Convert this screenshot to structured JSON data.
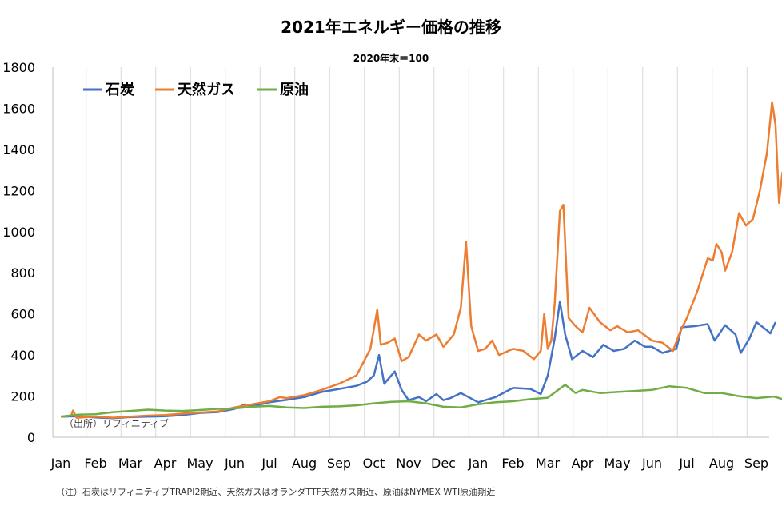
{
  "chart_data": {
    "type": "line",
    "title": "2021年エネルギー価格の推移",
    "subtitle": "2020年末＝100",
    "xlabel": "",
    "ylabel": "",
    "ylim": [
      0,
      1800
    ],
    "yticks": [
      0,
      200,
      400,
      600,
      800,
      1000,
      1200,
      1400,
      1600,
      1800
    ],
    "grid": "vertical lines at month boundaries",
    "legend_position": "top-left",
    "x_tick_labels": [
      "Jan",
      "Feb",
      "Mar",
      "Apr",
      "May",
      "Jun",
      "Jul",
      "Aug",
      "Sep",
      "Oct",
      "Nov",
      "Dec",
      "Jan",
      "Feb",
      "Mar",
      "Apr",
      "May",
      "Jun",
      "Jul",
      "Aug",
      "Sep"
    ],
    "x_domain_months": [
      0,
      20.6
    ],
    "source_text": "（出所）リフィニティブ",
    "note_text": "（注）石炭はリフィニティブTRAPI2期近、天然ガスはオランダTTF天然ガス期近、原油はNYMEX WTI原油期近",
    "series": [
      {
        "name": "石炭",
        "color": "#4472C4",
        "points": [
          [
            0,
            100
          ],
          [
            0.5,
            102
          ],
          [
            1.0,
            96
          ],
          [
            1.5,
            92
          ],
          [
            2.0,
            98
          ],
          [
            2.5,
            100
          ],
          [
            3.0,
            102
          ],
          [
            3.5,
            108
          ],
          [
            4.0,
            118
          ],
          [
            4.5,
            122
          ],
          [
            5.0,
            138
          ],
          [
            5.3,
            160
          ],
          [
            5.5,
            150
          ],
          [
            6.0,
            170
          ],
          [
            6.5,
            182
          ],
          [
            7.0,
            195
          ],
          [
            7.5,
            220
          ],
          [
            8.0,
            235
          ],
          [
            8.5,
            250
          ],
          [
            8.8,
            270
          ],
          [
            9.0,
            300
          ],
          [
            9.15,
            400
          ],
          [
            9.3,
            260
          ],
          [
            9.6,
            320
          ],
          [
            9.8,
            230
          ],
          [
            10.0,
            180
          ],
          [
            10.3,
            195
          ],
          [
            10.5,
            175
          ],
          [
            10.8,
            210
          ],
          [
            11.0,
            180
          ],
          [
            11.2,
            190
          ],
          [
            11.5,
            215
          ],
          [
            12.0,
            170
          ],
          [
            12.5,
            195
          ],
          [
            13.0,
            240
          ],
          [
            13.5,
            235
          ],
          [
            13.8,
            210
          ],
          [
            14.0,
            300
          ],
          [
            14.2,
            480
          ],
          [
            14.35,
            660
          ],
          [
            14.5,
            500
          ],
          [
            14.7,
            380
          ],
          [
            15.0,
            420
          ],
          [
            15.3,
            390
          ],
          [
            15.6,
            450
          ],
          [
            15.9,
            420
          ],
          [
            16.2,
            430
          ],
          [
            16.5,
            470
          ],
          [
            16.8,
            440
          ],
          [
            17.0,
            440
          ],
          [
            17.3,
            410
          ],
          [
            17.7,
            430
          ],
          [
            17.85,
            535
          ],
          [
            18.2,
            540
          ],
          [
            18.6,
            550
          ],
          [
            18.8,
            470
          ],
          [
            19.1,
            545
          ],
          [
            19.4,
            500
          ],
          [
            19.55,
            410
          ],
          [
            19.8,
            480
          ],
          [
            20.0,
            560
          ],
          [
            20.3,
            520
          ],
          [
            20.4,
            505
          ],
          [
            20.55,
            560
          ]
        ]
      },
      {
        "name": "天然ガス",
        "color": "#ED7D31",
        "points": [
          [
            0,
            100
          ],
          [
            0.3,
            105
          ],
          [
            0.35,
            130
          ],
          [
            0.45,
            95
          ],
          [
            1.0,
            100
          ],
          [
            1.5,
            95
          ],
          [
            2.0,
            100
          ],
          [
            2.5,
            105
          ],
          [
            3.0,
            108
          ],
          [
            3.5,
            115
          ],
          [
            4.0,
            120
          ],
          [
            4.5,
            125
          ],
          [
            5.0,
            145
          ],
          [
            5.5,
            160
          ],
          [
            6.0,
            175
          ],
          [
            6.3,
            195
          ],
          [
            6.5,
            190
          ],
          [
            7.0,
            205
          ],
          [
            7.5,
            230
          ],
          [
            8.0,
            260
          ],
          [
            8.5,
            300
          ],
          [
            8.9,
            430
          ],
          [
            9.1,
            620
          ],
          [
            9.2,
            450
          ],
          [
            9.4,
            460
          ],
          [
            9.6,
            480
          ],
          [
            9.8,
            370
          ],
          [
            10.0,
            390
          ],
          [
            10.3,
            500
          ],
          [
            10.5,
            470
          ],
          [
            10.8,
            500
          ],
          [
            11.0,
            440
          ],
          [
            11.3,
            500
          ],
          [
            11.5,
            630
          ],
          [
            11.65,
            950
          ],
          [
            11.8,
            540
          ],
          [
            12.0,
            420
          ],
          [
            12.2,
            430
          ],
          [
            12.4,
            470
          ],
          [
            12.6,
            400
          ],
          [
            13.0,
            430
          ],
          [
            13.3,
            420
          ],
          [
            13.6,
            380
          ],
          [
            13.8,
            420
          ],
          [
            13.9,
            600
          ],
          [
            14.0,
            430
          ],
          [
            14.1,
            470
          ],
          [
            14.2,
            650
          ],
          [
            14.35,
            1100
          ],
          [
            14.45,
            1130
          ],
          [
            14.6,
            580
          ],
          [
            14.8,
            540
          ],
          [
            15.0,
            510
          ],
          [
            15.2,
            630
          ],
          [
            15.5,
            560
          ],
          [
            15.8,
            520
          ],
          [
            16.0,
            540
          ],
          [
            16.3,
            510
          ],
          [
            16.6,
            520
          ],
          [
            17.0,
            470
          ],
          [
            17.3,
            460
          ],
          [
            17.6,
            420
          ],
          [
            17.8,
            510
          ],
          [
            18.0,
            580
          ],
          [
            18.3,
            710
          ],
          [
            18.6,
            870
          ],
          [
            18.75,
            860
          ],
          [
            18.85,
            940
          ],
          [
            19.0,
            900
          ],
          [
            19.1,
            810
          ],
          [
            19.3,
            900
          ],
          [
            19.5,
            1090
          ],
          [
            19.7,
            1030
          ],
          [
            19.9,
            1060
          ],
          [
            20.1,
            1200
          ],
          [
            20.3,
            1380
          ],
          [
            20.45,
            1630
          ],
          [
            20.55,
            1520
          ],
          [
            20.65,
            1140
          ],
          [
            20.75,
            1290
          ]
        ]
      },
      {
        "name": "原油",
        "color": "#70AD47",
        "points": [
          [
            0,
            100
          ],
          [
            0.5,
            110
          ],
          [
            1.0,
            112
          ],
          [
            1.5,
            122
          ],
          [
            2.0,
            128
          ],
          [
            2.5,
            134
          ],
          [
            3.0,
            130
          ],
          [
            3.5,
            128
          ],
          [
            4.0,
            132
          ],
          [
            4.5,
            138
          ],
          [
            5.0,
            140
          ],
          [
            5.5,
            148
          ],
          [
            6.0,
            152
          ],
          [
            6.5,
            145
          ],
          [
            7.0,
            142
          ],
          [
            7.5,
            148
          ],
          [
            8.0,
            150
          ],
          [
            8.5,
            155
          ],
          [
            9.0,
            165
          ],
          [
            9.5,
            172
          ],
          [
            10.0,
            175
          ],
          [
            10.5,
            165
          ],
          [
            11.0,
            148
          ],
          [
            11.5,
            145
          ],
          [
            12.0,
            160
          ],
          [
            12.5,
            170
          ],
          [
            13.0,
            175
          ],
          [
            13.5,
            185
          ],
          [
            14.0,
            192
          ],
          [
            14.3,
            230
          ],
          [
            14.5,
            255
          ],
          [
            14.8,
            215
          ],
          [
            15.0,
            230
          ],
          [
            15.5,
            215
          ],
          [
            16.0,
            220
          ],
          [
            16.5,
            225
          ],
          [
            17.0,
            230
          ],
          [
            17.5,
            248
          ],
          [
            18.0,
            240
          ],
          [
            18.5,
            215
          ],
          [
            19.0,
            215
          ],
          [
            19.5,
            200
          ],
          [
            20.0,
            190
          ],
          [
            20.5,
            198
          ],
          [
            20.75,
            185
          ]
        ]
      }
    ]
  }
}
